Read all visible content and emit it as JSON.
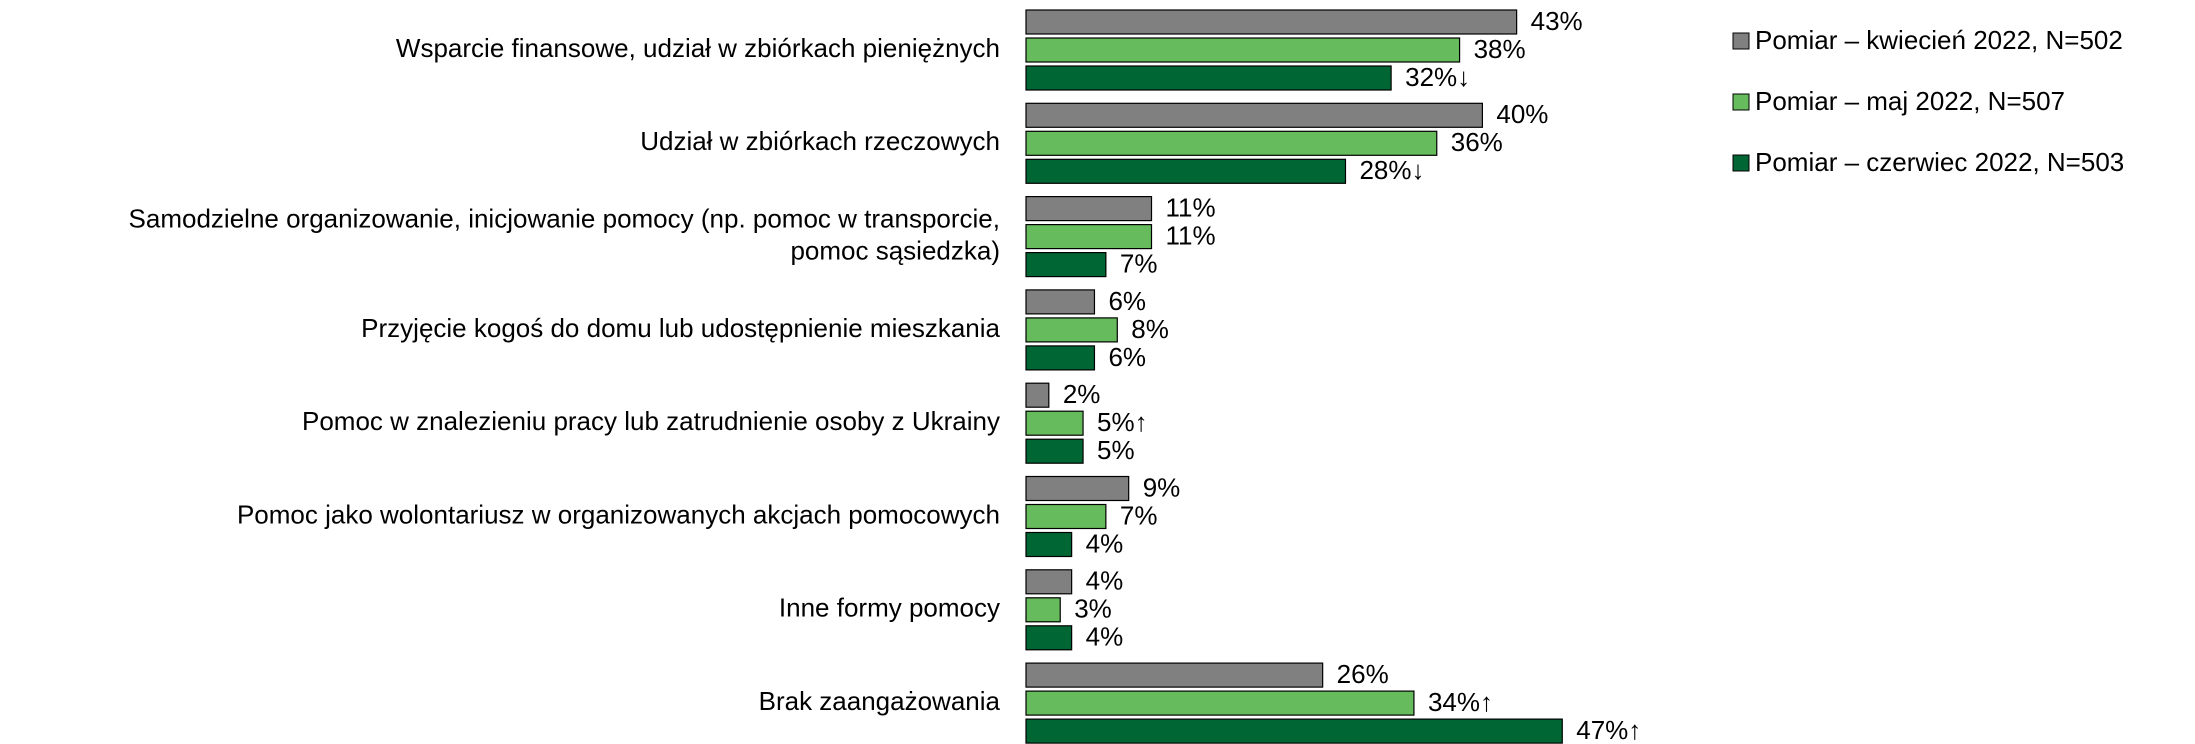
{
  "chart_data": {
    "type": "bar",
    "orientation": "horizontal",
    "categories": [
      "Wsparcie finansowe, udział w zbiórkach pieniężnych",
      "Udział w zbiórkach rzeczowych",
      "Samodzielne organizowanie, inicjowanie pomocy (np. pomoc w transporcie,\npomoc sąsiedzka)",
      "Przyjęcie kogoś do domu lub udostępnienie mieszkania",
      "Pomoc w znalezieniu pracy lub zatrudnienie osoby z Ukrainy",
      "Pomoc jako wolontariusz w organizowanych akcjach pomocowych",
      "Inne formy pomocy",
      "Brak zaangażowania"
    ],
    "series": [
      {
        "name": "Pomiar – kwiecień 2022, N=502",
        "color": "#808080",
        "values": [
          43,
          40,
          11,
          6,
          2,
          9,
          4,
          26
        ],
        "value_labels": [
          "43%",
          "40%",
          "11%",
          "6%",
          "2%",
          "9%",
          "4%",
          "26%"
        ]
      },
      {
        "name": "Pomiar – maj 2022, N=507",
        "color": "#66bb5c",
        "values": [
          38,
          36,
          11,
          8,
          5,
          7,
          3,
          34
        ],
        "value_labels": [
          "38%",
          "36%",
          "11%",
          "8%",
          "5%↑",
          "7%",
          "3%",
          "34%↑"
        ]
      },
      {
        "name": "Pomiar – czerwiec 2022, N=503",
        "color": "#006633",
        "values": [
          32,
          28,
          7,
          6,
          5,
          4,
          4,
          47
        ],
        "value_labels": [
          "32%↓",
          "28%↓",
          "7%",
          "6%",
          "5%",
          "4%",
          "4%",
          "47%↑"
        ]
      }
    ],
    "legend": "top-right"
  }
}
